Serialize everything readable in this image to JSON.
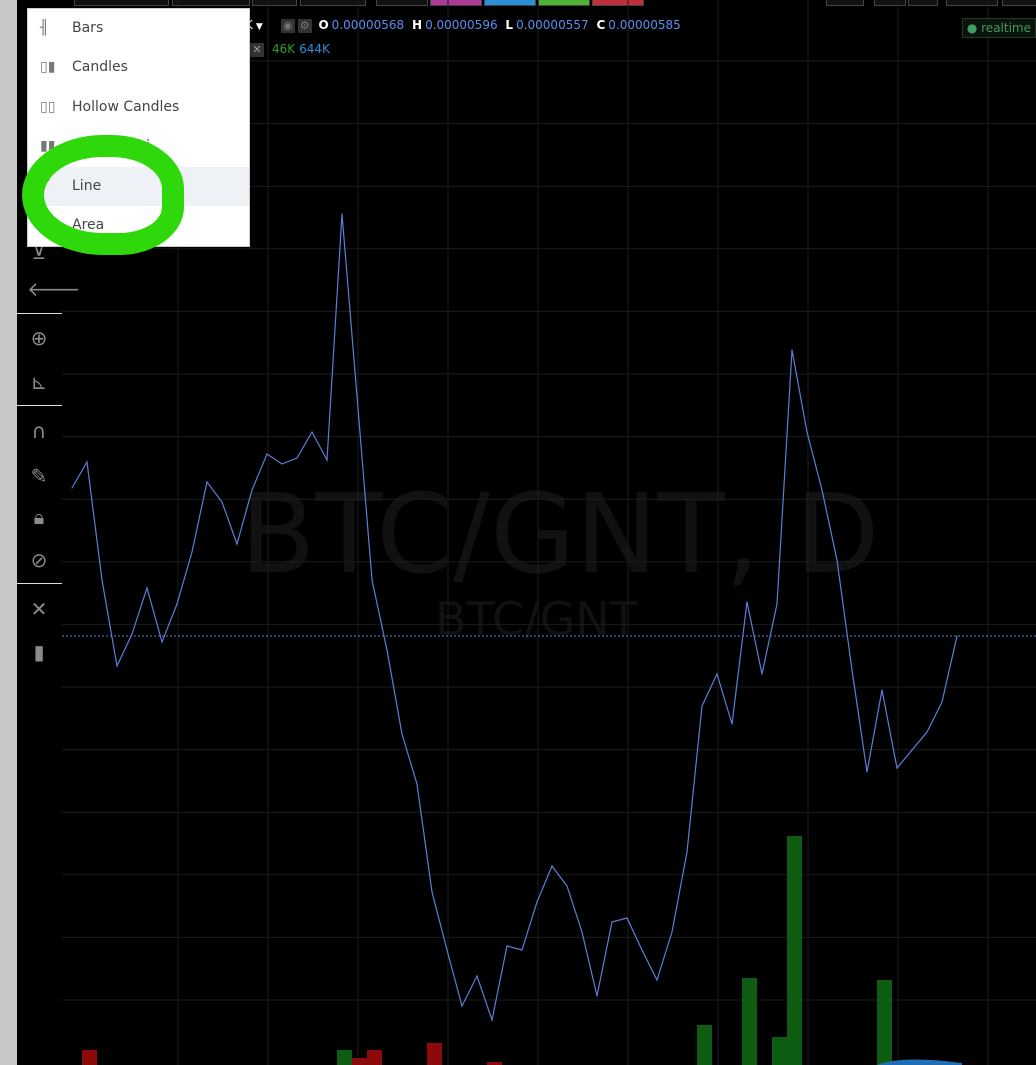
{
  "legend": {
    "symbol_suffix": "K",
    "open_label": "O",
    "open": "0.00000568",
    "high_label": "H",
    "high": "0.00000596",
    "low_label": "L",
    "low": "0.00000557",
    "close_label": "C",
    "close": "0.00000585",
    "volume_1": "46K",
    "volume_2": "644K"
  },
  "status": {
    "realtime": "realtime"
  },
  "watermark": {
    "main": "BTC/GNT, D",
    "sub": "BTC/GNT"
  },
  "chart_type_menu": {
    "items": [
      {
        "label": "Bars",
        "icon": "bars-icon"
      },
      {
        "label": "Candles",
        "icon": "candles-icon"
      },
      {
        "label": "Hollow Candles",
        "icon": "hollow-candles-icon"
      },
      {
        "label": "Heikin Ashi",
        "icon": "heikin-ashi-icon"
      },
      {
        "label": "Line",
        "icon": "line-icon",
        "selected": true
      },
      {
        "label": "Area",
        "icon": "area-icon"
      }
    ]
  },
  "colors": {
    "line": "#5b7fd6",
    "volume_up": "#0d5c12",
    "volume_down": "#8c0a0a",
    "highlight": "#2fd80a",
    "price_line": "#5b7fd6"
  },
  "chart_data": {
    "type": "line",
    "last_price": 585,
    "price_unit": "satoshi",
    "values": [
      659,
      672,
      613,
      570,
      586,
      609,
      582,
      601,
      627,
      662,
      652,
      631,
      658,
      676,
      671,
      674,
      687,
      673,
      796,
      705,
      613,
      578,
      536,
      511,
      457,
      428,
      400,
      415,
      393,
      430,
      428,
      452,
      470,
      460,
      437,
      405,
      442,
      444,
      428,
      413,
      437,
      477,
      550,
      566,
      541,
      602,
      566,
      601,
      728,
      687,
      658,
      623,
      568,
      517,
      558,
      519,
      528,
      537,
      552,
      585
    ],
    "volume": [
      {
        "index": 1,
        "value": 15,
        "dir": "down"
      },
      {
        "index": 18,
        "value": 15,
        "dir": "up"
      },
      {
        "index": 19,
        "value": 7,
        "dir": "down"
      },
      {
        "index": 20,
        "value": 15,
        "dir": "down"
      },
      {
        "index": 24,
        "value": 22,
        "dir": "down"
      },
      {
        "index": 28,
        "value": 3,
        "dir": "down"
      },
      {
        "index": 42,
        "value": 40,
        "dir": "up"
      },
      {
        "index": 45,
        "value": 87,
        "dir": "up"
      },
      {
        "index": 47,
        "value": 28,
        "dir": "up"
      },
      {
        "index": 48,
        "value": 229,
        "dir": "up"
      },
      {
        "index": 54,
        "value": 85,
        "dir": "up"
      }
    ]
  }
}
